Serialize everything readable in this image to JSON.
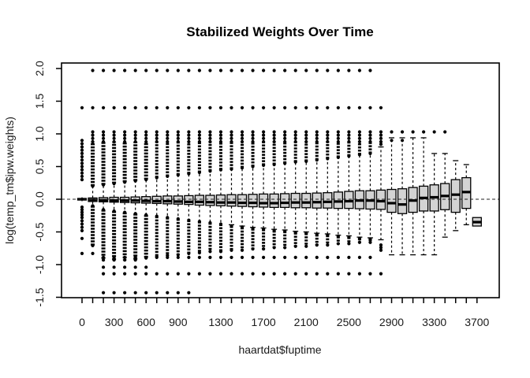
{
  "chart_data": {
    "type": "boxplot",
    "title": "Stabilized Weights Over Time",
    "xlabel": "haartdat$fuptime",
    "ylabel": "log(temp_tm$ipw.weights)",
    "ylim": [
      -1.5,
      2.08
    ],
    "y_tick_values": [
      2.0,
      1.5,
      1.0,
      0.5,
      0.0,
      -0.5,
      -1.0,
      -1.5
    ],
    "y_tick_labels": [
      "2.0",
      "1.5",
      "1.0",
      "0.5",
      "0.0",
      "-0.5",
      "-1.0",
      "-1.5"
    ],
    "x_ticks_every": 100,
    "x_labeled_ticks": [
      0,
      300,
      600,
      900,
      1300,
      1700,
      2100,
      2500,
      2900,
      3300,
      3700
    ],
    "zero_reference_line": 0,
    "grid": false,
    "legend": "none",
    "box_fill": "#d3d3d3",
    "box_stroke": "#000000",
    "box_fields": [
      "t",
      "median",
      "q1",
      "q3",
      "whisker_lo",
      "whisker_hi",
      "outlier_col_hi",
      "outlier_col_lo",
      "extra_outlier_dots"
    ],
    "boxes": [
      [
        0,
        0.0,
        -0.012,
        0.012,
        -0.03,
        0.03,
        null,
        null,
        [
          0.3,
          0.35,
          0.4,
          0.45,
          0.5,
          0.55,
          0.6,
          0.65,
          0.7,
          0.75,
          0.8,
          0.85,
          0.9,
          -0.12,
          -0.16,
          -0.2,
          -0.24,
          -0.28,
          -0.33,
          -0.38,
          -0.43,
          -0.48,
          -0.6,
          -0.83
        ]
      ],
      [
        100,
        -0.01,
        -0.035,
        0.02,
        -0.1,
        0.2,
        [
          0.2,
          0.88
        ],
        [
          -0.1,
          -0.71
        ],
        [
          -0.83
        ]
      ],
      [
        200,
        -0.015,
        -0.04,
        0.025,
        -0.16,
        0.22,
        [
          0.22,
          0.88
        ],
        [
          -0.16,
          -0.93
        ],
        [
          -1.04
        ]
      ],
      [
        300,
        -0.02,
        -0.045,
        0.03,
        -0.18,
        0.24,
        [
          0.24,
          0.88
        ],
        [
          -0.18,
          -0.93
        ],
        [
          -1.04
        ]
      ],
      [
        400,
        -0.02,
        -0.05,
        0.03,
        -0.2,
        0.26,
        [
          0.26,
          0.88
        ],
        [
          -0.2,
          -0.93
        ],
        [
          -1.04
        ]
      ],
      [
        500,
        -0.02,
        -0.055,
        0.035,
        -0.22,
        0.28,
        [
          0.28,
          0.88
        ],
        [
          -0.22,
          -0.93
        ],
        [
          -1.04
        ]
      ],
      [
        600,
        -0.025,
        -0.06,
        0.04,
        -0.24,
        0.3,
        [
          0.3,
          0.88
        ],
        [
          -0.24,
          -0.9
        ],
        [
          -1.04
        ]
      ],
      [
        700,
        -0.03,
        -0.065,
        0.045,
        -0.26,
        0.33,
        [
          0.33,
          0.88
        ],
        [
          -0.26,
          -0.88
        ],
        []
      ],
      [
        800,
        -0.03,
        -0.07,
        0.05,
        -0.28,
        0.35,
        [
          0.35,
          0.88
        ],
        [
          -0.28,
          -0.86
        ],
        []
      ],
      [
        900,
        -0.035,
        -0.075,
        0.05,
        -0.3,
        0.37,
        [
          0.37,
          0.88
        ],
        [
          -0.3,
          -0.85
        ],
        []
      ],
      [
        1000,
        -0.04,
        -0.08,
        0.055,
        -0.32,
        0.39,
        [
          0.39,
          0.88
        ],
        [
          -0.32,
          -0.83
        ],
        []
      ],
      [
        1100,
        -0.04,
        -0.09,
        0.06,
        -0.34,
        0.41,
        [
          0.41,
          0.88
        ],
        [
          -0.34,
          -0.82
        ],
        []
      ],
      [
        1200,
        -0.045,
        -0.095,
        0.06,
        -0.36,
        0.43,
        [
          0.43,
          0.88
        ],
        [
          -0.36,
          -0.8
        ],
        []
      ],
      [
        1300,
        -0.05,
        -0.1,
        0.065,
        -0.38,
        0.45,
        [
          0.45,
          0.88
        ],
        [
          -0.38,
          -0.8
        ],
        []
      ],
      [
        1400,
        -0.05,
        -0.105,
        0.07,
        -0.39,
        0.46,
        [
          0.46,
          0.88
        ],
        [
          -0.41,
          -0.78
        ],
        []
      ],
      [
        1500,
        -0.055,
        -0.11,
        0.07,
        -0.41,
        0.48,
        [
          0.48,
          0.88
        ],
        [
          -0.43,
          -0.78
        ],
        []
      ],
      [
        1600,
        -0.055,
        -0.115,
        0.075,
        -0.43,
        0.5,
        [
          0.5,
          0.88
        ],
        [
          -0.45,
          -0.76
        ],
        []
      ],
      [
        1700,
        -0.06,
        -0.12,
        0.08,
        -0.44,
        0.52,
        [
          0.52,
          0.88
        ],
        [
          -0.46,
          -0.76
        ],
        []
      ],
      [
        1800,
        -0.06,
        -0.125,
        0.08,
        -0.46,
        0.53,
        [
          0.53,
          0.88
        ],
        [
          -0.48,
          -0.74
        ],
        []
      ],
      [
        1900,
        -0.055,
        -0.125,
        0.085,
        -0.47,
        0.55,
        [
          0.55,
          0.88
        ],
        [
          -0.49,
          -0.74
        ],
        []
      ],
      [
        2000,
        -0.05,
        -0.13,
        0.09,
        -0.49,
        0.57,
        [
          0.57,
          0.88
        ],
        [
          -0.51,
          -0.72
        ],
        []
      ],
      [
        2100,
        -0.05,
        -0.13,
        0.09,
        -0.5,
        0.58,
        [
          0.58,
          0.88
        ],
        [
          -0.52,
          -0.72
        ],
        []
      ],
      [
        2200,
        -0.045,
        -0.135,
        0.095,
        -0.52,
        0.6,
        [
          0.6,
          0.88
        ],
        [
          -0.54,
          -0.7
        ],
        []
      ],
      [
        2300,
        -0.04,
        -0.135,
        0.1,
        -0.53,
        0.62,
        [
          0.62,
          0.88
        ],
        [
          -0.55,
          -0.7
        ],
        []
      ],
      [
        2400,
        -0.035,
        -0.14,
        0.11,
        -0.55,
        0.64,
        [
          0.64,
          0.88
        ],
        [
          -0.57,
          -0.68
        ],
        []
      ],
      [
        2500,
        -0.03,
        -0.14,
        0.12,
        -0.56,
        0.66,
        [
          0.66,
          0.88
        ],
        [
          -0.58,
          -0.68
        ],
        []
      ],
      [
        2600,
        -0.02,
        -0.145,
        0.13,
        -0.58,
        0.68,
        [
          0.68,
          0.88
        ],
        [
          -0.6,
          -0.66
        ],
        []
      ],
      [
        2700,
        -0.02,
        -0.15,
        0.13,
        -0.59,
        0.7,
        [
          0.7,
          0.88
        ],
        [
          -0.61,
          -0.66
        ],
        []
      ],
      [
        2800,
        -0.03,
        -0.155,
        0.14,
        -0.62,
        0.8,
        null,
        null,
        [
          0.84,
          0.88,
          -0.7,
          -0.74,
          -0.78
        ]
      ],
      [
        2900,
        -0.06,
        -0.2,
        0.15,
        -0.85,
        0.94,
        null,
        null,
        [
          0.9
        ]
      ],
      [
        3000,
        -0.08,
        -0.22,
        0.16,
        -0.85,
        0.94,
        null,
        null,
        [
          0.9
        ]
      ],
      [
        3100,
        -0.02,
        -0.2,
        0.18,
        -0.85,
        0.94,
        null,
        null,
        []
      ],
      [
        3200,
        0.02,
        -0.18,
        0.2,
        -0.85,
        0.94,
        null,
        null,
        []
      ],
      [
        3300,
        0.03,
        -0.18,
        0.22,
        -0.85,
        0.7,
        null,
        null,
        []
      ],
      [
        3400,
        0.05,
        -0.16,
        0.24,
        -0.58,
        0.7,
        null,
        null,
        []
      ],
      [
        3500,
        0.07,
        -0.2,
        0.3,
        -0.48,
        0.59,
        null,
        null,
        []
      ],
      [
        3600,
        0.11,
        -0.14,
        0.33,
        -0.39,
        0.53,
        null,
        null,
        []
      ],
      [
        3700,
        -0.35,
        -0.41,
        -0.28,
        -0.41,
        -0.28,
        null,
        null,
        []
      ]
    ],
    "outlier_rows": [
      {
        "y": 1.97,
        "from": 100,
        "to": 2700
      },
      {
        "y": 1.4,
        "from": 0,
        "to": 2800
      },
      {
        "y": 1.03,
        "from": 100,
        "to": 3400
      },
      {
        "y": 0.98,
        "from": 100,
        "to": 2800
      },
      {
        "y": 0.93,
        "from": 100,
        "to": 2800
      },
      {
        "y": -0.89,
        "from": 200,
        "to": 2700
      },
      {
        "y": -1.14,
        "from": 200,
        "to": 2800
      },
      {
        "y": -1.43,
        "from": 200,
        "to": 1000
      }
    ]
  }
}
